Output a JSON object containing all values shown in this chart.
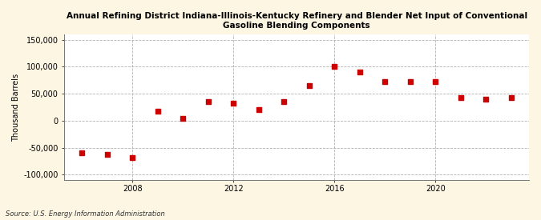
{
  "title_line1": "Annual Refining District Indiana-Illinois-Kentucky Refinery and Blender Net Input of Conventional",
  "title_line2": "Gasoline Blending Components",
  "ylabel": "Thousand Barrels",
  "source": "Source: U.S. Energy Information Administration",
  "background_color": "#fdf6e3",
  "plot_background_color": "#ffffff",
  "marker_color": "#cc0000",
  "marker": "s",
  "marker_size": 4,
  "xlim": [
    2005.3,
    2023.7
  ],
  "ylim": [
    -110000,
    160000
  ],
  "yticks": [
    -100000,
    -50000,
    0,
    50000,
    100000,
    150000
  ],
  "xticks": [
    2008,
    2012,
    2016,
    2020
  ],
  "grid_color": "#aaaaaa",
  "data_x": [
    2006,
    2007,
    2008,
    2009,
    2010,
    2011,
    2012,
    2013,
    2014,
    2015,
    2016,
    2017,
    2018,
    2019,
    2020,
    2021,
    2022,
    2023
  ],
  "data_y": [
    -60000,
    -62000,
    -68000,
    18000,
    5000,
    36000,
    32000,
    21000,
    35000,
    65000,
    100000,
    90000,
    73000,
    73000,
    73000,
    43000,
    40000,
    43000
  ]
}
